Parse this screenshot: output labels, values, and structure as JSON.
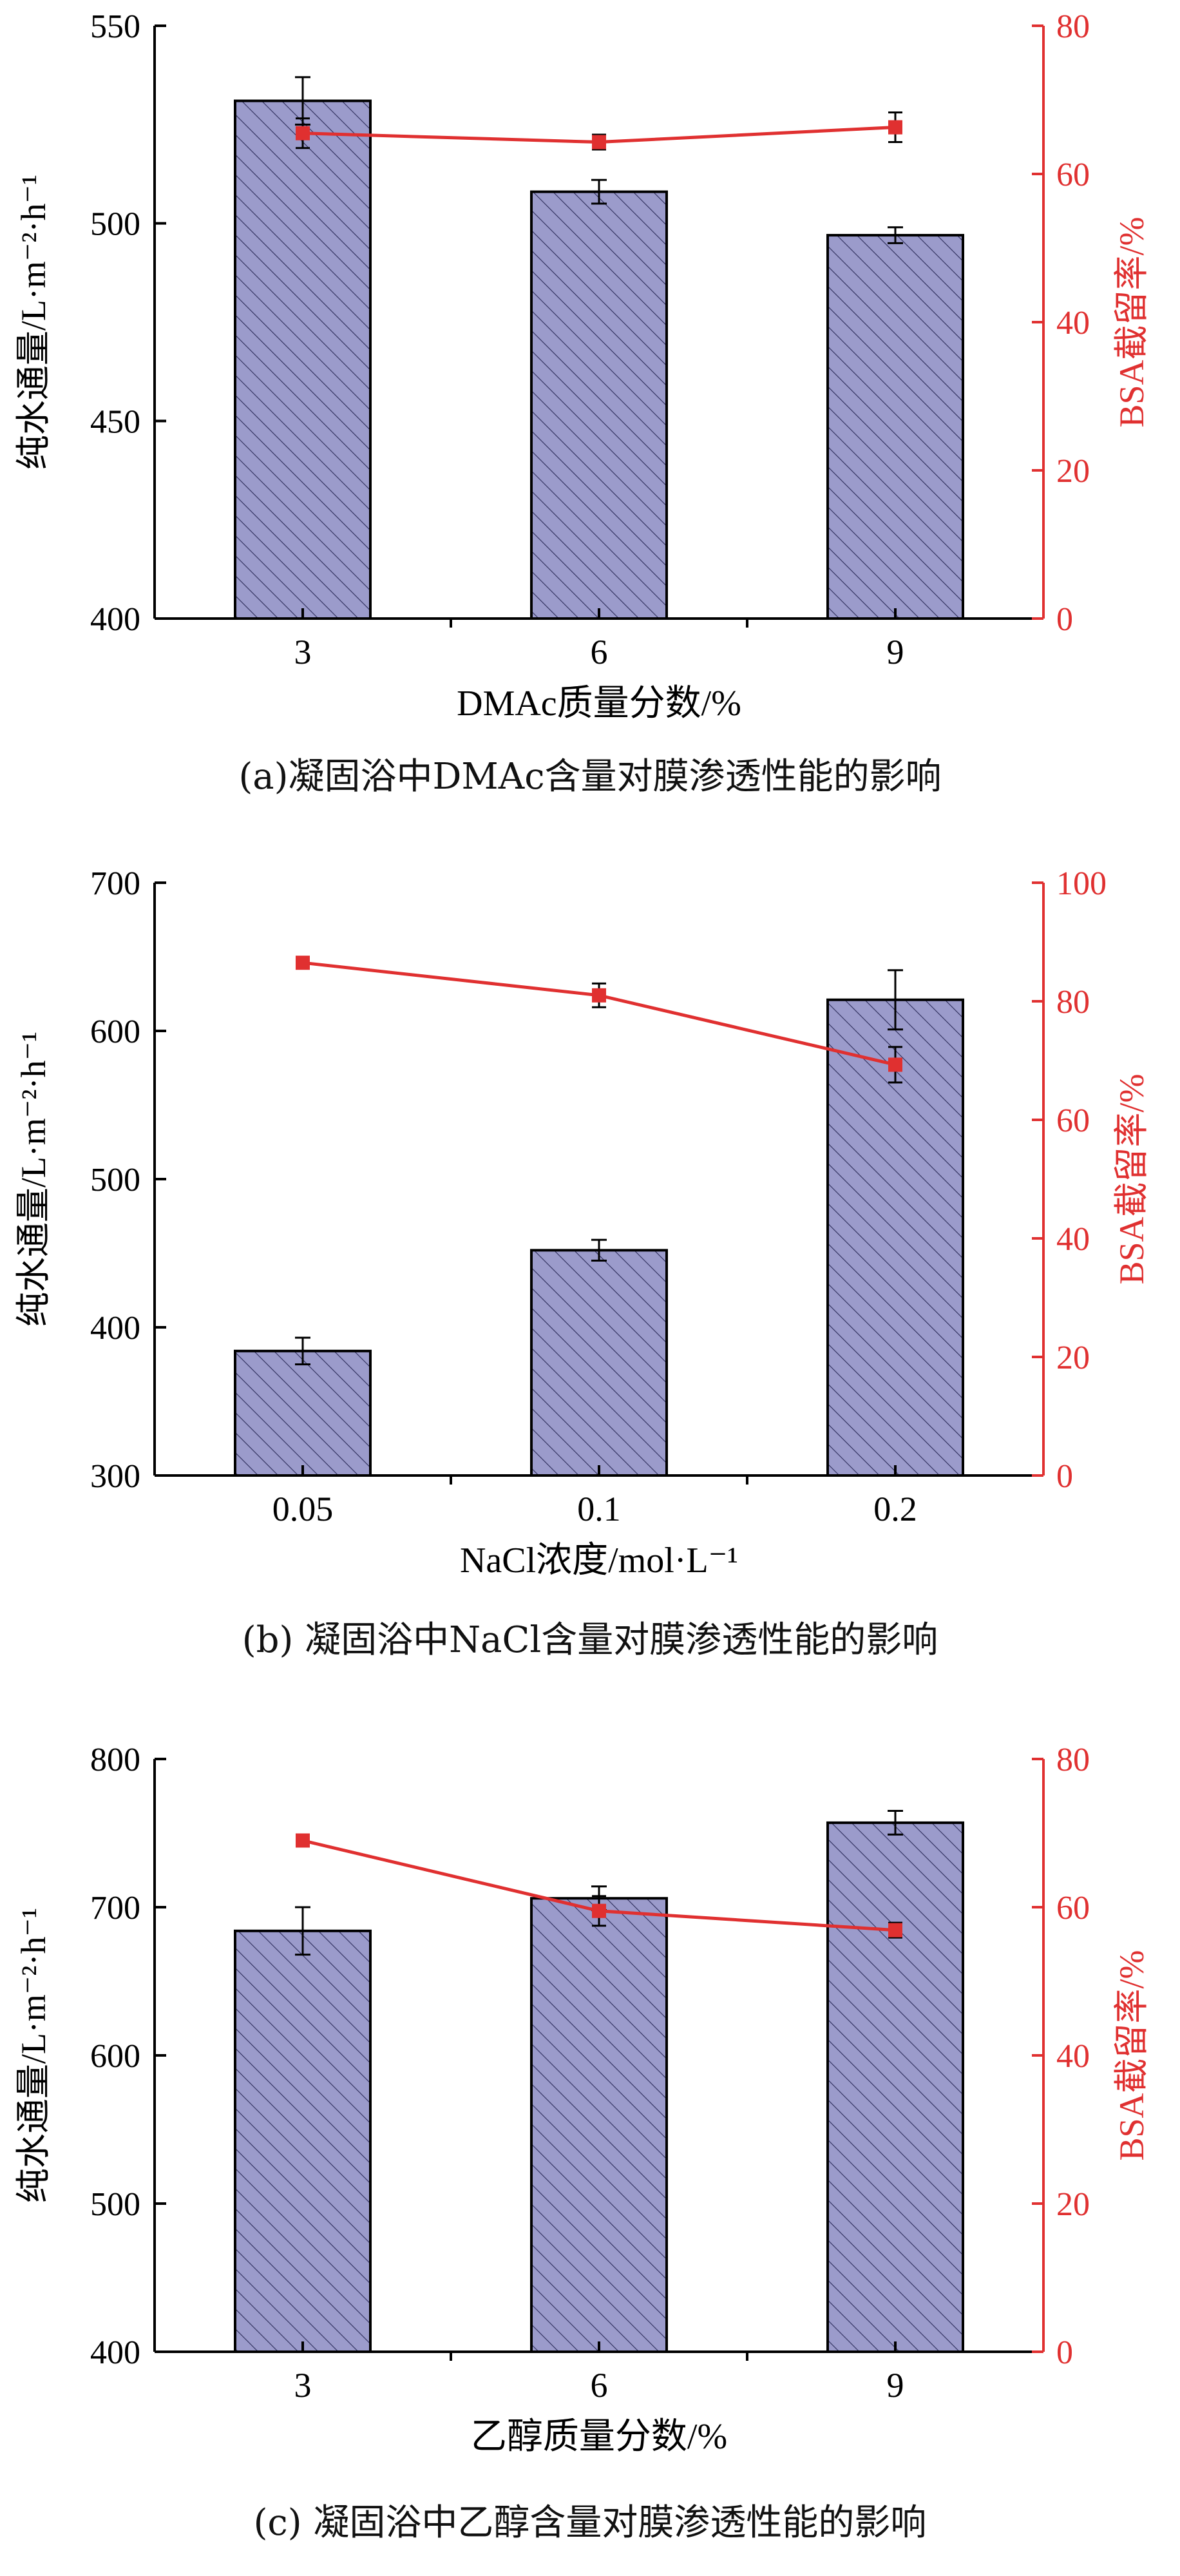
{
  "colors": {
    "bar_fill": "#9B9BCB",
    "bar_hatch": "#2c2c5a",
    "axis": "#000000",
    "line": "#e03030",
    "marker": "#e03030",
    "right_axis": "#e03030"
  },
  "chart_data": [
    {
      "type": "bar",
      "categories": [
        "3",
        "6",
        "9"
      ],
      "series": [
        {
          "axis": "left",
          "kind": "bar",
          "values": [
            531,
            508,
            497
          ],
          "error": [
            6,
            3,
            2
          ]
        },
        {
          "axis": "right",
          "kind": "line",
          "values": [
            65.5,
            64.3,
            66.3
          ],
          "error": [
            2,
            1,
            2
          ]
        }
      ],
      "xlabel": "DMAc质量分数/%",
      "ylabel": "纯水通量/L·m⁻²·h⁻¹",
      "y2label": "BSA截留率/%",
      "ylim": [
        400,
        550
      ],
      "yticks": [
        "400",
        "450",
        "500",
        "550"
      ],
      "y2lim": [
        0,
        80
      ],
      "y2ticks": [
        "0",
        "20",
        "40",
        "60",
        "80"
      ],
      "caption": "(a)凝固浴中DMAc含量对膜渗透性能的影响"
    },
    {
      "type": "bar",
      "categories": [
        "0.05",
        "0.1",
        "0.2"
      ],
      "series": [
        {
          "axis": "left",
          "kind": "bar",
          "values": [
            384,
            452,
            621
          ],
          "error": [
            9,
            7,
            20
          ]
        },
        {
          "axis": "right",
          "kind": "line",
          "values": [
            86.5,
            81.0,
            69.3
          ],
          "error": [
            0.5,
            2,
            3
          ]
        }
      ],
      "xlabel": "NaCl浓度/mol·L⁻¹",
      "ylabel": "纯水通量/L·m⁻²·h⁻¹",
      "y2label": "BSA截留率/%",
      "ylim": [
        300,
        700
      ],
      "yticks": [
        "300",
        "400",
        "500",
        "600",
        "700"
      ],
      "y2lim": [
        0,
        100
      ],
      "y2ticks": [
        "0",
        "20",
        "40",
        "60",
        "80",
        "100"
      ],
      "caption": "(b) 凝固浴中NaCl含量对膜渗透性能的影响"
    },
    {
      "type": "bar",
      "categories": [
        "3",
        "6",
        "9"
      ],
      "series": [
        {
          "axis": "left",
          "kind": "bar",
          "values": [
            684,
            706,
            757
          ],
          "error": [
            16,
            8,
            8
          ]
        },
        {
          "axis": "right",
          "kind": "line",
          "values": [
            69.0,
            59.5,
            56.9
          ],
          "error": [
            0.5,
            2,
            1
          ]
        }
      ],
      "xlabel": "乙醇质量分数/%",
      "ylabel": "纯水通量/L·m⁻²·h⁻¹",
      "y2label": "BSA截留率/%",
      "ylim": [
        400,
        800
      ],
      "yticks": [
        "400",
        "500",
        "600",
        "700",
        "800"
      ],
      "y2lim": [
        0,
        80
      ],
      "y2ticks": [
        "0",
        "20",
        "40",
        "60",
        "80"
      ],
      "caption": "(c) 凝固浴中乙醇含量对膜渗透性能的影响"
    }
  ]
}
